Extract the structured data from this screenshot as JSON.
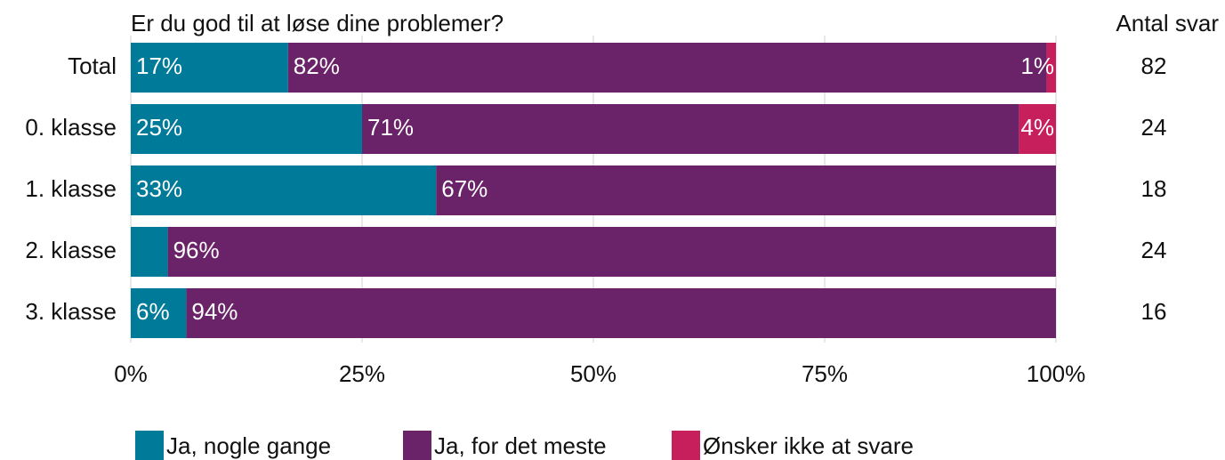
{
  "chart_data": {
    "type": "stacked-bar-horizontal",
    "title": "Er du god til at løse dine problemer?",
    "categories": [
      "Total",
      "0. klasse",
      "1. klasse",
      "2. klasse",
      "3. klasse"
    ],
    "series": [
      {
        "name": "Ja, nogle gange",
        "color": "#007a99",
        "values": [
          17,
          25,
          33,
          4,
          6
        ],
        "value_labels": [
          "17%",
          "25%",
          "33%",
          null,
          "6%"
        ]
      },
      {
        "name": "Ja, for det meste",
        "color": "#6a2268",
        "values": [
          82,
          71,
          67,
          96,
          94
        ],
        "value_labels": [
          "82%",
          "71%",
          "67%",
          "96%",
          "94%"
        ]
      },
      {
        "name": "Ønsker ikke at svare",
        "color": "#c71f5c",
        "values": [
          1,
          4,
          null,
          null,
          null
        ],
        "value_labels": [
          "1%",
          "4%",
          null,
          null,
          null
        ]
      }
    ],
    "xlim": [
      0,
      100
    ],
    "xticks": [
      {
        "value": 0,
        "label": "0%"
      },
      {
        "value": 25,
        "label": "25%"
      },
      {
        "value": 50,
        "label": "50%"
      },
      {
        "value": 75,
        "label": "75%"
      },
      {
        "value": 100,
        "label": "100%"
      }
    ],
    "grid": true,
    "count_header": "Antal svar",
    "counts": [
      82,
      24,
      18,
      24,
      16
    ],
    "legend": "bottom"
  }
}
